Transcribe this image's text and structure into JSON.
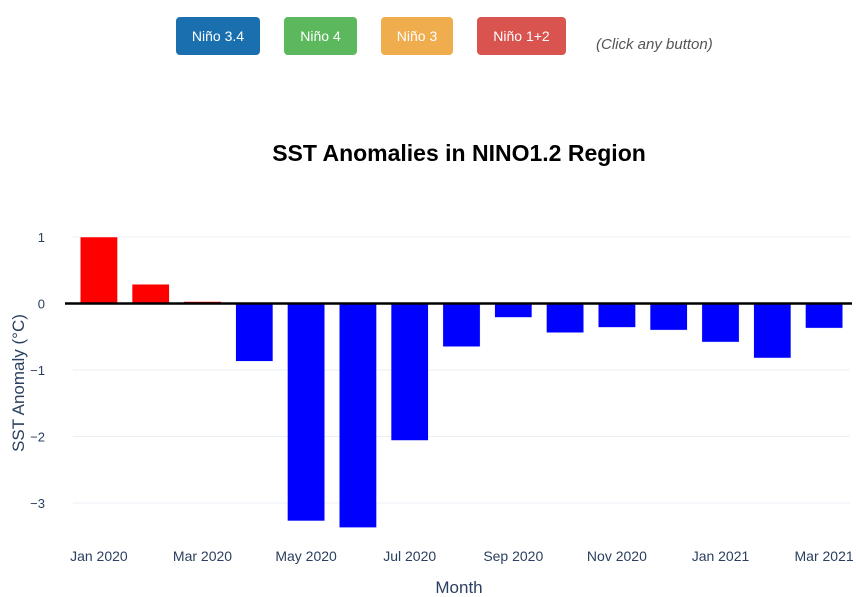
{
  "buttons": [
    {
      "label": "Niño 3.4",
      "color": "#1a6faf"
    },
    {
      "label": "Niño 4",
      "color": "#5cb85c"
    },
    {
      "label": "Niño 3",
      "color": "#f0ad4e"
    },
    {
      "label": "Niño 1+2",
      "color": "#d9534f"
    }
  ],
  "hint": "(Click any button)",
  "chart_data": {
    "type": "bar",
    "title": "SST Anomalies in NINO1.2 Region",
    "xlabel": "Month",
    "ylabel": "SST Anomaly (°C)",
    "categories": [
      "Jan 2020",
      "Feb 2020",
      "Mar 2020",
      "Apr 2020",
      "May 2020",
      "Jun 2020",
      "Jul 2020",
      "Aug 2020",
      "Sep 2020",
      "Oct 2020",
      "Nov 2020",
      "Dec 2020",
      "Jan 2021",
      "Feb 2021",
      "Mar 2021"
    ],
    "values": [
      1.0,
      0.29,
      0.03,
      -0.87,
      -3.27,
      -3.37,
      -2.06,
      -0.65,
      -0.21,
      -0.44,
      -0.36,
      -0.4,
      -0.58,
      -0.82,
      -0.37
    ],
    "positive_color": "#ff0000",
    "negative_color": "#0000ff",
    "ylim": [
      -3.6,
      1.1
    ],
    "yticks": [
      "1",
      "0",
      "−1",
      "−2",
      "−3"
    ],
    "ytick_values": [
      1,
      0,
      -1,
      -2,
      -3
    ],
    "xtick_labels": [
      "Jan 2020",
      "Mar 2020",
      "May 2020",
      "Jul 2020",
      "Sep 2020",
      "Nov 2020",
      "Jan 2021",
      "Mar 2021"
    ],
    "xtick_indices": [
      0,
      2,
      4,
      6,
      8,
      10,
      12,
      14
    ],
    "grid": true,
    "zero_line": true
  }
}
